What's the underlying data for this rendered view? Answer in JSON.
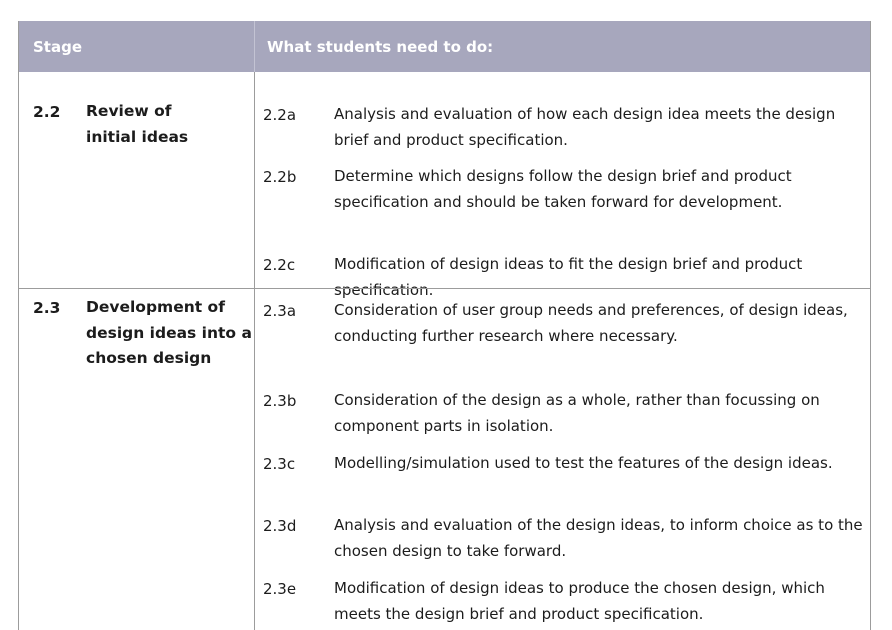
{
  "header": {
    "stage": "Stage",
    "what": "What students need to do:"
  },
  "sections": [
    {
      "num": "2.2",
      "title": "Review of initial ideas",
      "items": [
        {
          "code": "2.2a",
          "text": "Analysis and evaluation of how each design idea meets the design brief and product specification."
        },
        {
          "code": "2.2b",
          "text": "Determine which designs follow the design brief and product specification and should be taken forward for development."
        },
        {
          "code": "2.2c",
          "text": "Modification of design ideas to fit the design brief and product specification."
        }
      ]
    },
    {
      "num": "2.3",
      "title": "Development of design ideas into a chosen design",
      "items": [
        {
          "code": "2.3a",
          "text": "Consideration of user group needs and preferences, of design ideas, conducting further research where necessary."
        },
        {
          "code": "2.3b",
          "text": "Consideration of the design as a whole, rather than focussing on component parts in isolation."
        },
        {
          "code": "2.3c",
          "text": "Modelling/simulation used to test the features of the design ideas."
        },
        {
          "code": "2.3d",
          "text": "Analysis and evaluation of the design ideas, to inform choice as to the chosen design to take forward."
        },
        {
          "code": "2.3e",
          "text": "Modification of design ideas to produce the chosen design, which meets the design brief and product specification."
        }
      ]
    }
  ]
}
